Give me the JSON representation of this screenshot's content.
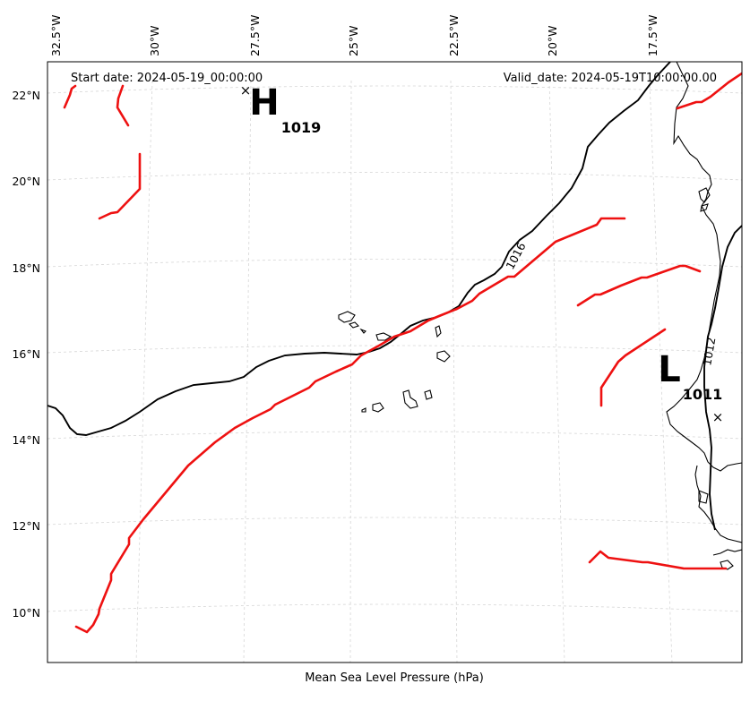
{
  "map": {
    "start_date": "Start date: 2024-05-19_00:00:00",
    "valid_date": "Valid_date: 2024-05-19T10:00:00.00",
    "xlabel": "Mean Sea Level Pressure (hPa)",
    "lon_ticks": [
      "32.5°W",
      "30°W",
      "27.5°W",
      "25°W",
      "22.5°W",
      "20°W",
      "17.5°W"
    ],
    "lat_ticks": [
      "22°N",
      "20°N",
      "18°N",
      "16°N",
      "14°N",
      "12°N",
      "10°N"
    ],
    "pressure_centers": [
      {
        "type": "high",
        "letter": "H",
        "value": "1019",
        "marker": "×",
        "lon": -27.6,
        "lat": 22.1
      },
      {
        "type": "low",
        "letter": "L",
        "value": "1011",
        "marker": "×",
        "lon": -16.3,
        "lat": 14.6
      }
    ],
    "isobars": [
      {
        "value": 1016,
        "label": "1016"
      },
      {
        "value": 1012,
        "label": "1012"
      }
    ],
    "colors": {
      "front": "#ee1111",
      "isobar": "#000000",
      "coastline": "#000000",
      "gridline": "#d6d6d6",
      "frame": "#000000"
    }
  }
}
